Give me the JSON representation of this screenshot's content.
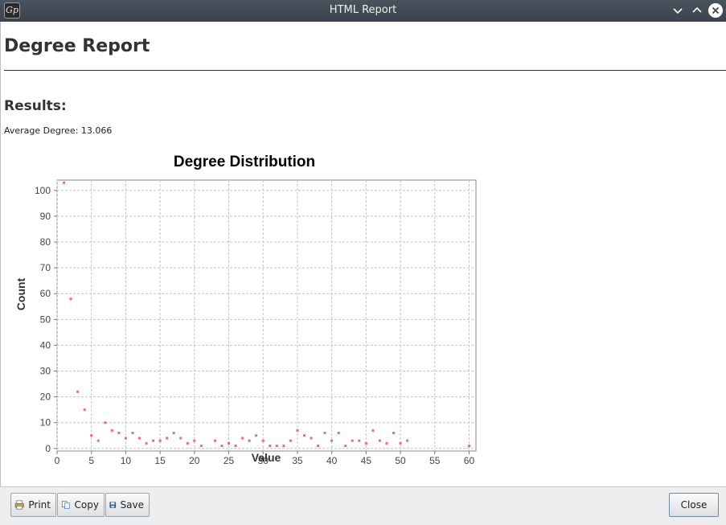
{
  "window": {
    "title": "HTML Report",
    "app_icon_text": "Gp"
  },
  "report": {
    "title": "Degree Report",
    "results_heading": "Results:",
    "average_degree": "Average Degree: 13.066"
  },
  "chart_data": {
    "type": "scatter",
    "title": "Degree Distribution",
    "xlabel": "Value",
    "ylabel": "Count",
    "xlim": [
      0,
      61
    ],
    "ylim": [
      -1,
      104
    ],
    "x_ticks": [
      0,
      5,
      10,
      15,
      20,
      25,
      30,
      35,
      40,
      45,
      50,
      55,
      60
    ],
    "y_ticks": [
      0,
      10,
      20,
      30,
      40,
      50,
      60,
      70,
      80,
      90,
      100
    ],
    "grid": true,
    "marker_color": "#f26b6b",
    "points": [
      [
        1,
        103
      ],
      [
        2,
        58
      ],
      [
        3,
        22
      ],
      [
        4,
        15
      ],
      [
        5,
        5
      ],
      [
        6,
        3
      ],
      [
        7,
        10
      ],
      [
        8,
        7
      ],
      [
        9,
        6
      ],
      [
        10,
        4
      ],
      [
        11,
        6
      ],
      [
        12,
        4
      ],
      [
        13,
        2
      ],
      [
        14,
        3
      ],
      [
        15,
        3
      ],
      [
        16,
        4
      ],
      [
        17,
        6
      ],
      [
        18,
        4
      ],
      [
        19,
        2
      ],
      [
        20,
        3
      ],
      [
        21,
        1
      ],
      [
        23,
        3
      ],
      [
        24,
        1
      ],
      [
        25,
        2
      ],
      [
        26,
        1
      ],
      [
        27,
        4
      ],
      [
        28,
        3
      ],
      [
        29,
        5
      ],
      [
        30,
        3
      ],
      [
        31,
        1
      ],
      [
        32,
        1
      ],
      [
        33,
        1
      ],
      [
        34,
        3
      ],
      [
        35,
        7
      ],
      [
        36,
        5
      ],
      [
        37,
        4
      ],
      [
        38,
        1
      ],
      [
        39,
        6
      ],
      [
        40,
        3
      ],
      [
        41,
        6
      ],
      [
        42,
        1
      ],
      [
        43,
        3
      ],
      [
        44,
        3
      ],
      [
        45,
        2
      ],
      [
        46,
        7
      ],
      [
        47,
        3
      ],
      [
        48,
        2
      ],
      [
        49,
        6
      ],
      [
        50,
        2
      ],
      [
        51,
        3
      ],
      [
        60,
        1
      ]
    ]
  },
  "buttons": {
    "print": "Print",
    "copy": "Copy",
    "save": "Save",
    "close": "Close"
  },
  "icons": {
    "app": "gephi-logo-icon",
    "minimize": "chevron-down-icon",
    "maximize": "chevron-up-icon",
    "close": "close-icon",
    "print": "printer-icon",
    "copy": "copy-icon",
    "save": "floppy-disk-icon"
  }
}
